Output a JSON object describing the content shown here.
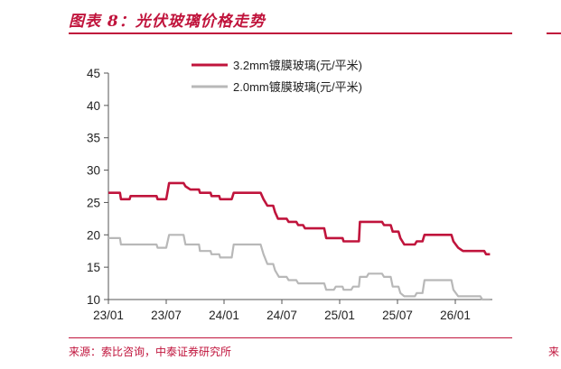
{
  "header": {
    "title": "图表 8：光伏玻璃价格走势"
  },
  "footer": {
    "source": "来源：索比咨询，中泰证券研究所",
    "edge_mark": "来"
  },
  "chart_data": {
    "type": "line",
    "title": "",
    "xlabel": "",
    "ylabel": "",
    "ylim": [
      10,
      45
    ],
    "yticks": [
      10,
      15,
      20,
      25,
      30,
      35,
      40,
      45
    ],
    "xticks": [
      "23/01",
      "23/07",
      "24/01",
      "24/07",
      "25/01",
      "25/07",
      "26/01"
    ],
    "x_unit": "months since 23/01",
    "legend_position": "top",
    "grid": false,
    "series": [
      {
        "name": "3.2mm镀膜玻璃(元/平米)",
        "color": "#c0143c",
        "points": [
          [
            0,
            26.5
          ],
          [
            1.2,
            26.5
          ],
          [
            1.3,
            25.5
          ],
          [
            2.2,
            25.5
          ],
          [
            2.3,
            26
          ],
          [
            5,
            26
          ],
          [
            5.1,
            25.5
          ],
          [
            6,
            25.5
          ],
          [
            6.3,
            28
          ],
          [
            7.8,
            28
          ],
          [
            8,
            27.5
          ],
          [
            8.5,
            27
          ],
          [
            9.4,
            27
          ],
          [
            9.5,
            26.5
          ],
          [
            10.6,
            26.5
          ],
          [
            10.7,
            26
          ],
          [
            11.5,
            26
          ],
          [
            11.6,
            25.5
          ],
          [
            12.8,
            25.5
          ],
          [
            13,
            26.5
          ],
          [
            15.8,
            26.5
          ],
          [
            16.1,
            25.5
          ],
          [
            16.5,
            24.5
          ],
          [
            17.1,
            24.5
          ],
          [
            17.3,
            23.5
          ],
          [
            17.6,
            22.5
          ],
          [
            18.5,
            22.5
          ],
          [
            18.7,
            22
          ],
          [
            19.5,
            22
          ],
          [
            19.7,
            21.5
          ],
          [
            20.2,
            21.5
          ],
          [
            20.4,
            21
          ],
          [
            22.4,
            21
          ],
          [
            22.6,
            19.5
          ],
          [
            24.3,
            19.5
          ],
          [
            24.4,
            19
          ],
          [
            26,
            19
          ],
          [
            26.1,
            22
          ],
          [
            28.4,
            22
          ],
          [
            28.6,
            21.5
          ],
          [
            29.3,
            21.5
          ],
          [
            29.5,
            20.5
          ],
          [
            30.1,
            20.5
          ],
          [
            30.3,
            19.5
          ],
          [
            30.7,
            18.5
          ],
          [
            31.8,
            18.5
          ],
          [
            32,
            19
          ],
          [
            32.6,
            19
          ],
          [
            32.8,
            20
          ],
          [
            35.6,
            20
          ],
          [
            35.8,
            19
          ],
          [
            36.3,
            18
          ],
          [
            36.8,
            17.5
          ],
          [
            39,
            17.5
          ],
          [
            39.2,
            17
          ],
          [
            39.6,
            17
          ]
        ]
      },
      {
        "name": "2.0mm镀膜玻璃(元/平米)",
        "color": "#b8b8b8",
        "points": [
          [
            0,
            19.5
          ],
          [
            1.2,
            19.5
          ],
          [
            1.3,
            18.5
          ],
          [
            5,
            18.5
          ],
          [
            5.1,
            18
          ],
          [
            6,
            18
          ],
          [
            6.3,
            20
          ],
          [
            7.8,
            20
          ],
          [
            8,
            18.5
          ],
          [
            9.4,
            18.5
          ],
          [
            9.5,
            17.5
          ],
          [
            10.6,
            17.5
          ],
          [
            10.7,
            17
          ],
          [
            11.5,
            17
          ],
          [
            11.6,
            16.5
          ],
          [
            12.8,
            16.5
          ],
          [
            13,
            18.5
          ],
          [
            15.8,
            18.5
          ],
          [
            16.1,
            17
          ],
          [
            16.5,
            15.5
          ],
          [
            17.1,
            15.5
          ],
          [
            17.3,
            14.5
          ],
          [
            17.7,
            13.5
          ],
          [
            18.5,
            13.5
          ],
          [
            18.7,
            13
          ],
          [
            19.5,
            13
          ],
          [
            19.7,
            12.5
          ],
          [
            22.4,
            12.5
          ],
          [
            22.6,
            11.5
          ],
          [
            23.4,
            11.5
          ],
          [
            23.6,
            12
          ],
          [
            24.3,
            12
          ],
          [
            24.4,
            11.5
          ],
          [
            25.2,
            11.5
          ],
          [
            25.4,
            12
          ],
          [
            26,
            12
          ],
          [
            26.1,
            13.5
          ],
          [
            26.8,
            13.5
          ],
          [
            27,
            14
          ],
          [
            28.4,
            14
          ],
          [
            28.6,
            13.5
          ],
          [
            29.3,
            13.5
          ],
          [
            29.5,
            12
          ],
          [
            30.1,
            12
          ],
          [
            30.3,
            11
          ],
          [
            30.7,
            10.5
          ],
          [
            31.8,
            10.5
          ],
          [
            32,
            11
          ],
          [
            32.6,
            11
          ],
          [
            32.8,
            13
          ],
          [
            35.6,
            13
          ],
          [
            35.8,
            11.5
          ],
          [
            36.3,
            10.5
          ],
          [
            38.6,
            10.5
          ],
          [
            38.8,
            10
          ],
          [
            39.6,
            10
          ]
        ]
      }
    ]
  }
}
